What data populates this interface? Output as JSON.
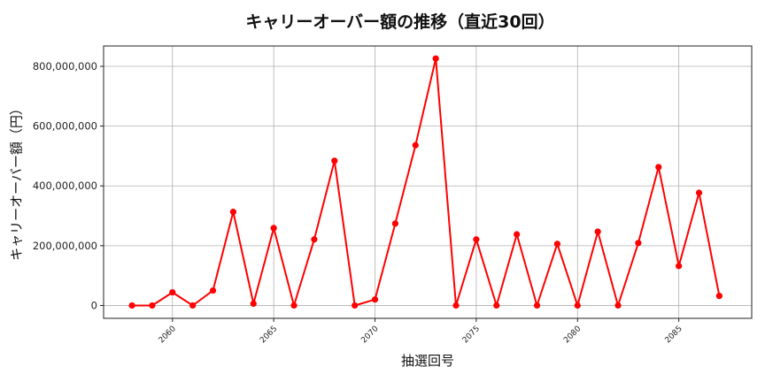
{
  "chart_data": {
    "type": "line",
    "title": "キャリーオーバー額の推移（直近30回）",
    "xlabel": "抽選回号",
    "ylabel": "キャリーオーバー額（円）",
    "x": [
      2058,
      2059,
      2060,
      2061,
      2062,
      2063,
      2064,
      2065,
      2066,
      2067,
      2068,
      2069,
      2070,
      2071,
      2072,
      2073,
      2074,
      2075,
      2076,
      2077,
      2078,
      2079,
      2080,
      2081,
      2082,
      2083,
      2084,
      2085,
      2086,
      2087
    ],
    "series": [
      {
        "name": "キャリーオーバー額",
        "color": "#ff0000",
        "marker": "circle",
        "values": [
          0,
          0,
          44000000,
          0,
          50000000,
          313000000,
          6000000,
          259000000,
          0,
          221000000,
          484000000,
          0,
          20000000,
          274000000,
          536000000,
          826000000,
          0,
          221000000,
          0,
          238000000,
          0,
          206000000,
          0,
          247000000,
          0,
          209000000,
          463000000,
          132000000,
          377000000,
          32000000
        ]
      }
    ],
    "xticks": [
      2060,
      2065,
      2070,
      2075,
      2080,
      2085
    ],
    "xtick_labels": [
      "2060",
      "2065",
      "2070",
      "2075",
      "2080",
      "2085"
    ],
    "yticks": [
      0,
      200000000,
      400000000,
      600000000,
      800000000
    ],
    "ytick_labels": [
      "0",
      "200,000,000",
      "400,000,000",
      "600,000,000",
      "800,000,000"
    ],
    "xlim": [
      2056.6,
      2088.6
    ],
    "ylim": [
      -43000000,
      868000000
    ],
    "grid": true,
    "legend": null
  }
}
